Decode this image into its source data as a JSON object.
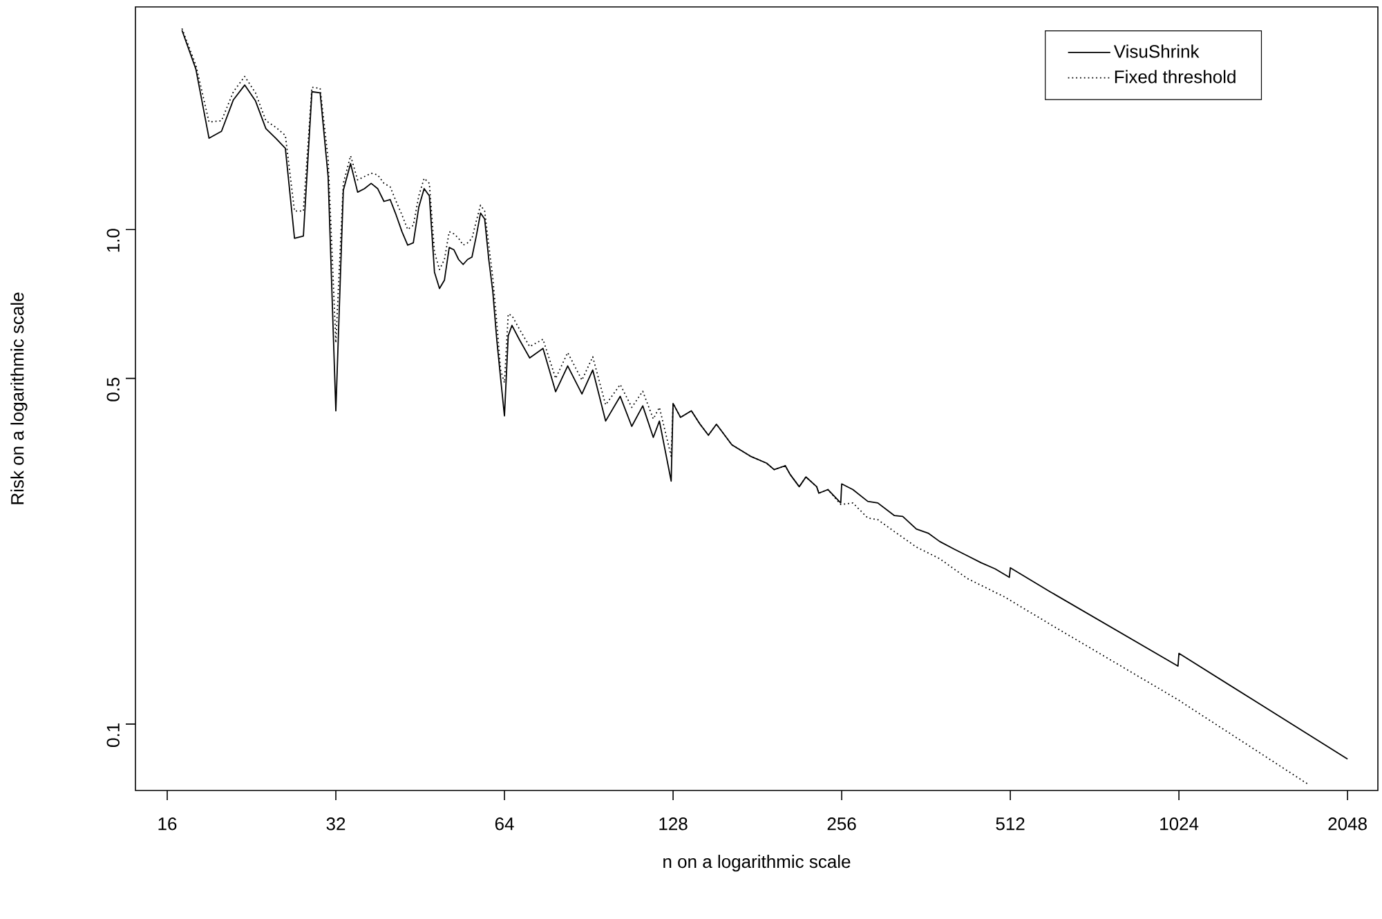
{
  "chart_data": {
    "type": "line",
    "xlabel": "n on a logarithmic scale",
    "ylabel": "Risk on a logarithmic scale",
    "log": "xy",
    "xlim": [
      14.04,
      2320
    ],
    "ylim": [
      0.0734,
      2.82
    ],
    "xticks": [
      16,
      32,
      64,
      128,
      256,
      512,
      1024,
      2048
    ],
    "yticks": [
      0.1,
      0.5,
      {
        "value": 1,
        "label": "1.0"
      }
    ],
    "legend": "top right",
    "grid": false,
    "series": [
      {
        "name": "VisuShrink",
        "color": "#000000",
        "line_style": "solid",
        "x": [
          17,
          18,
          19,
          20,
          21,
          22,
          23,
          24,
          25,
          26,
          27,
          28,
          29,
          30,
          31,
          32,
          33,
          34,
          35,
          36,
          37,
          38,
          39,
          40,
          41,
          42,
          43,
          44,
          45,
          46,
          47,
          48,
          49,
          50,
          51,
          52,
          53,
          54,
          55,
          56,
          57,
          58,
          59,
          60,
          61,
          62,
          63,
          64,
          65,
          66,
          68,
          71,
          75,
          79,
          83,
          88,
          92,
          97,
          103,
          108,
          113,
          118,
          121,
          127,
          128,
          132,
          138,
          143,
          148,
          153,
          163,
          176,
          188,
          194,
          203,
          207,
          215,
          221,
          231,
          233,
          242,
          255,
          256,
          268,
          285,
          297,
          318,
          329,
          348,
          366,
          383,
          406,
          429,
          454,
          481,
          510,
          512,
          604,
          1020,
          1024,
          2048
        ],
        "values": [
          2.53,
          2.11,
          1.53,
          1.58,
          1.83,
          1.96,
          1.82,
          1.6,
          1.53,
          1.46,
          0.96,
          0.97,
          1.9,
          1.89,
          1.28,
          0.43,
          1.2,
          1.36,
          1.19,
          1.21,
          1.24,
          1.21,
          1.14,
          1.15,
          1.07,
          0.99,
          0.93,
          0.94,
          1.11,
          1.21,
          1.17,
          0.82,
          0.76,
          0.79,
          0.92,
          0.91,
          0.87,
          0.85,
          0.87,
          0.88,
          0.97,
          1.08,
          1.05,
          0.87,
          0.75,
          0.6,
          0.5,
          0.42,
          0.61,
          0.64,
          0.6,
          0.55,
          0.575,
          0.47,
          0.53,
          0.465,
          0.52,
          0.41,
          0.46,
          0.4,
          0.44,
          0.38,
          0.41,
          0.31,
          0.445,
          0.417,
          0.43,
          0.404,
          0.384,
          0.404,
          0.367,
          0.348,
          0.337,
          0.327,
          0.333,
          0.32,
          0.302,
          0.316,
          0.302,
          0.293,
          0.298,
          0.28,
          0.306,
          0.298,
          0.282,
          0.28,
          0.264,
          0.263,
          0.248,
          0.243,
          0.234,
          0.226,
          0.219,
          0.212,
          0.206,
          0.198,
          0.207,
          0.185,
          0.131,
          0.139,
          0.085
        ]
      },
      {
        "name": "Fixed threshold",
        "color": "#000000",
        "line_style": "dotted",
        "x": [
          17,
          18,
          19,
          20,
          21,
          22,
          23,
          24,
          25,
          26,
          27,
          28,
          29,
          30,
          31,
          32,
          33,
          34,
          35,
          36,
          37,
          38,
          39,
          40,
          41,
          42,
          43,
          44,
          45,
          46,
          47,
          48,
          49,
          50,
          51,
          52,
          53,
          54,
          55,
          56,
          57,
          58,
          59,
          60,
          61,
          62,
          63,
          64,
          65,
          66,
          68,
          71,
          75,
          79,
          83,
          88,
          92,
          97,
          103,
          108,
          113,
          118,
          121,
          127,
          128,
          132,
          138,
          143,
          148,
          153,
          163,
          176,
          188,
          194,
          203,
          207,
          215,
          221,
          231,
          233,
          242,
          255,
          268,
          285,
          297,
          318,
          348,
          383,
          429,
          499,
          604,
          1020,
          1747
        ],
        "values": [
          2.55,
          2.15,
          1.65,
          1.66,
          1.9,
          2.04,
          1.89,
          1.66,
          1.61,
          1.55,
          1.09,
          1.09,
          1.94,
          1.93,
          1.39,
          0.59,
          1.24,
          1.41,
          1.26,
          1.28,
          1.3,
          1.29,
          1.24,
          1.22,
          1.14,
          1.07,
          1.0,
          1.02,
          1.17,
          1.27,
          1.24,
          0.9,
          0.83,
          0.87,
          0.99,
          0.98,
          0.96,
          0.93,
          0.94,
          0.96,
          1.04,
          1.12,
          1.09,
          0.93,
          0.8,
          0.65,
          0.52,
          0.49,
          0.675,
          0.67,
          0.63,
          0.58,
          0.6,
          0.5,
          0.564,
          0.496,
          0.553,
          0.442,
          0.486,
          0.437,
          0.471,
          0.414,
          0.437,
          0.348,
          0.445,
          0.417,
          0.43,
          0.404,
          0.384,
          0.404,
          0.367,
          0.348,
          0.337,
          0.327,
          0.333,
          0.32,
          0.302,
          0.316,
          0.302,
          0.293,
          0.298,
          0.278,
          0.28,
          0.261,
          0.259,
          0.245,
          0.228,
          0.216,
          0.197,
          0.181,
          0.159,
          0.112,
          0.0754
        ]
      }
    ]
  }
}
